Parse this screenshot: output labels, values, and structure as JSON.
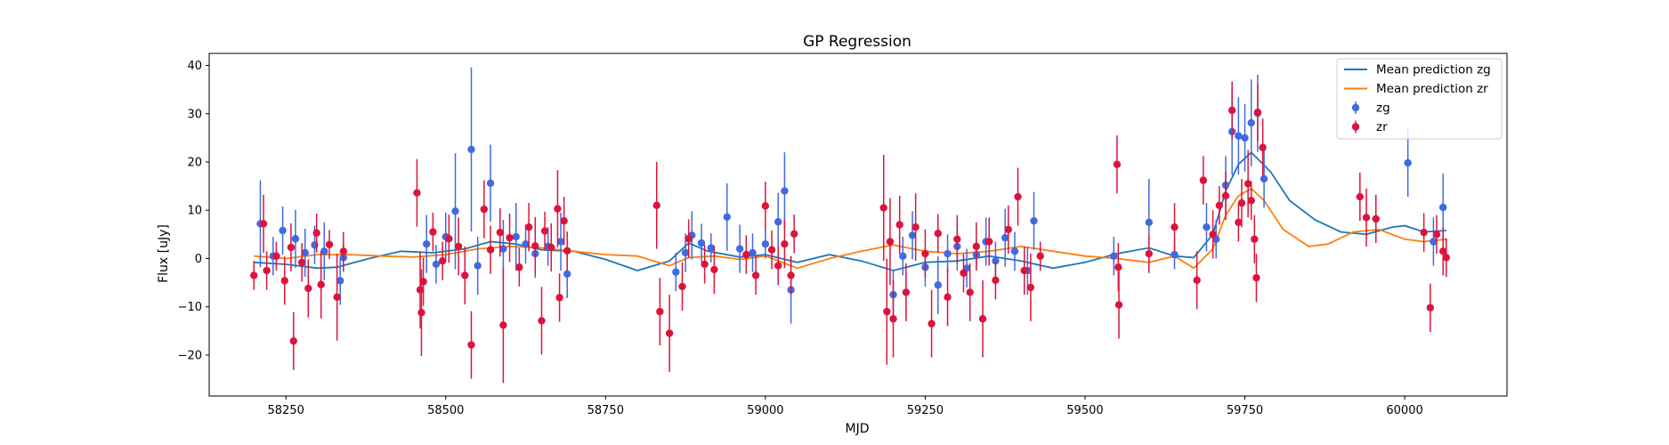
{
  "chart_data": {
    "type": "scatter",
    "title": "GP Regression",
    "xlabel": "MJD",
    "ylabel": "Flux [uJy]",
    "xlim": [
      58130,
      60160
    ],
    "ylim": [
      -28.5,
      42.5
    ],
    "xticks": [
      58250,
      58500,
      58750,
      59000,
      59250,
      59500,
      59750,
      60000
    ],
    "yticks": [
      -20,
      -10,
      0,
      10,
      20,
      30,
      40
    ],
    "grid": false,
    "legend_position": "top-right",
    "series": [
      {
        "name": "zg",
        "kind": "errorbar",
        "color": "#4169e1",
        "points": [
          [
            58210,
            7.2,
            9
          ],
          [
            58230,
            0.5,
            4
          ],
          [
            58245,
            5.8,
            5
          ],
          [
            58265,
            4.1,
            6
          ],
          [
            58280,
            1.2,
            5
          ],
          [
            58295,
            2.8,
            4
          ],
          [
            58310,
            1.5,
            6
          ],
          [
            58335,
            -4.6,
            5
          ],
          [
            58340,
            0.2,
            3
          ],
          [
            58470,
            3.0,
            6
          ],
          [
            58485,
            -1.2,
            4
          ],
          [
            58500,
            4.5,
            5
          ],
          [
            58515,
            9.8,
            12
          ],
          [
            58540,
            22.6,
            17
          ],
          [
            58550,
            -1.5,
            6
          ],
          [
            58570,
            15.6,
            8
          ],
          [
            58590,
            2.0,
            6
          ],
          [
            58610,
            4.5,
            7
          ],
          [
            58625,
            3.0,
            4
          ],
          [
            58640,
            1.0,
            5
          ],
          [
            58660,
            2.5,
            4
          ],
          [
            58680,
            3.5,
            6
          ],
          [
            58690,
            -3.2,
            5
          ],
          [
            58860,
            -2.8,
            4
          ],
          [
            58875,
            1.2,
            4
          ],
          [
            58885,
            4.8,
            5
          ],
          [
            58900,
            3.2,
            4
          ],
          [
            58915,
            2.2,
            3
          ],
          [
            58940,
            8.6,
            7
          ],
          [
            58960,
            2.0,
            5
          ],
          [
            58980,
            1.2,
            4
          ],
          [
            59000,
            3.0,
            3
          ],
          [
            59020,
            7.6,
            6
          ],
          [
            59030,
            14.0,
            8
          ],
          [
            59040,
            -6.5,
            7
          ],
          [
            59200,
            -7.5,
            5
          ],
          [
            59215,
            0.5,
            4
          ],
          [
            59230,
            4.8,
            5
          ],
          [
            59250,
            -1.8,
            4
          ],
          [
            59270,
            -5.5,
            6
          ],
          [
            59285,
            1.0,
            4
          ],
          [
            59300,
            2.5,
            5
          ],
          [
            59315,
            -2.0,
            4
          ],
          [
            59330,
            0.8,
            3
          ],
          [
            59345,
            3.5,
            5
          ],
          [
            59360,
            -0.5,
            4
          ],
          [
            59375,
            4.3,
            6
          ],
          [
            59390,
            1.5,
            4
          ],
          [
            59410,
            -2.5,
            5
          ],
          [
            59420,
            7.8,
            6
          ],
          [
            59545,
            0.5,
            4
          ],
          [
            59600,
            7.5,
            9
          ],
          [
            59640,
            0.8,
            3
          ],
          [
            59690,
            6.5,
            5
          ],
          [
            59705,
            4.0,
            4
          ],
          [
            59720,
            15.2,
            6
          ],
          [
            59730,
            26.3,
            9
          ],
          [
            59740,
            25.4,
            8
          ],
          [
            59750,
            25.0,
            7
          ],
          [
            59760,
            28.1,
            9
          ],
          [
            59770,
            30.1,
            8
          ],
          [
            59780,
            16.5,
            6
          ],
          [
            60005,
            19.8,
            7
          ],
          [
            60045,
            3.5,
            5
          ],
          [
            60060,
            10.6,
            7
          ]
        ]
      },
      {
        "name": "zr",
        "kind": "errorbar",
        "color": "#dc143c",
        "points": [
          [
            58200,
            -3.5,
            3
          ],
          [
            58215,
            7.2,
            6
          ],
          [
            58220,
            -2.5,
            4
          ],
          [
            58235,
            0.5,
            3
          ],
          [
            58248,
            -4.6,
            5
          ],
          [
            58258,
            2.3,
            5
          ],
          [
            58262,
            -17.1,
            6
          ],
          [
            58275,
            -0.8,
            4
          ],
          [
            58285,
            -6.2,
            6
          ],
          [
            58298,
            5.3,
            4
          ],
          [
            58305,
            -5.4,
            7
          ],
          [
            58318,
            2.9,
            3
          ],
          [
            58330,
            -8.0,
            9
          ],
          [
            58340,
            1.5,
            4
          ],
          [
            58455,
            13.6,
            7
          ],
          [
            58460,
            -6.5,
            8
          ],
          [
            58462,
            -11.2,
            9
          ],
          [
            58465,
            -4.8,
            5
          ],
          [
            58480,
            5.5,
            4
          ],
          [
            58495,
            -0.5,
            4
          ],
          [
            58505,
            4.1,
            5
          ],
          [
            58520,
            2.5,
            6
          ],
          [
            58530,
            -3.5,
            6
          ],
          [
            58540,
            -17.9,
            7
          ],
          [
            58560,
            10.2,
            6
          ],
          [
            58570,
            1.8,
            5
          ],
          [
            58585,
            5.4,
            5
          ],
          [
            58590,
            -13.8,
            12
          ],
          [
            58600,
            4.3,
            5
          ],
          [
            58615,
            -1.8,
            4
          ],
          [
            58630,
            6.5,
            5
          ],
          [
            58640,
            2.6,
            6
          ],
          [
            58650,
            -12.9,
            7
          ],
          [
            58655,
            5.7,
            4
          ],
          [
            58665,
            2.3,
            5
          ],
          [
            58675,
            10.3,
            8
          ],
          [
            58678,
            -8.1,
            5
          ],
          [
            58685,
            7.8,
            5
          ],
          [
            58690,
            1.6,
            4
          ],
          [
            58830,
            11.0,
            9
          ],
          [
            58835,
            -11.0,
            7
          ],
          [
            58850,
            -15.5,
            8
          ],
          [
            58870,
            -5.8,
            5
          ],
          [
            58880,
            4.1,
            4
          ],
          [
            58905,
            -1.2,
            4
          ],
          [
            58920,
            -2.3,
            5
          ],
          [
            58970,
            0.8,
            4
          ],
          [
            58985,
            -3.5,
            4
          ],
          [
            59000,
            10.9,
            5
          ],
          [
            59010,
            1.8,
            4
          ],
          [
            59020,
            -1.5,
            4
          ],
          [
            59030,
            3.0,
            5
          ],
          [
            59040,
            -3.5,
            4
          ],
          [
            59045,
            5.1,
            4
          ],
          [
            59185,
            10.5,
            11
          ],
          [
            59190,
            -11.0,
            11
          ],
          [
            59195,
            3.5,
            9
          ],
          [
            59200,
            -12.5,
            8
          ],
          [
            59210,
            7.0,
            6
          ],
          [
            59220,
            -7.0,
            6
          ],
          [
            59235,
            6.5,
            7
          ],
          [
            59250,
            1.0,
            5
          ],
          [
            59260,
            -13.5,
            7
          ],
          [
            59270,
            5.2,
            4
          ],
          [
            59285,
            -8.0,
            6
          ],
          [
            59300,
            4.0,
            5
          ],
          [
            59310,
            -3.0,
            4
          ],
          [
            59320,
            -7.0,
            6
          ],
          [
            59330,
            2.5,
            5
          ],
          [
            59340,
            -12.5,
            8
          ],
          [
            59350,
            3.5,
            5
          ],
          [
            59360,
            -4.5,
            4
          ],
          [
            59380,
            6.0,
            5
          ],
          [
            59395,
            12.8,
            6
          ],
          [
            59405,
            -2.5,
            5
          ],
          [
            59415,
            -6.0,
            7
          ],
          [
            59430,
            0.5,
            3
          ],
          [
            59550,
            19.5,
            6
          ],
          [
            59552,
            -1.8,
            5
          ],
          [
            59553,
            -9.6,
            7
          ],
          [
            59600,
            1.0,
            4
          ],
          [
            59640,
            6.5,
            5
          ],
          [
            59675,
            -4.5,
            6
          ],
          [
            59685,
            16.2,
            5
          ],
          [
            59700,
            5.0,
            5
          ],
          [
            59710,
            11.0,
            4
          ],
          [
            59720,
            13.0,
            5
          ],
          [
            59730,
            30.7,
            6
          ],
          [
            59740,
            7.5,
            4
          ],
          [
            59745,
            11.5,
            5
          ],
          [
            59755,
            15.5,
            7
          ],
          [
            59760,
            12.0,
            4
          ],
          [
            59765,
            4.0,
            5
          ],
          [
            59768,
            -4.0,
            5
          ],
          [
            59770,
            30.3,
            6
          ],
          [
            59778,
            23.0,
            6
          ],
          [
            59930,
            12.8,
            5
          ],
          [
            59940,
            8.5,
            6
          ],
          [
            59955,
            8.2,
            5
          ],
          [
            60030,
            5.4,
            4
          ],
          [
            60040,
            -10.2,
            5
          ],
          [
            60050,
            5.0,
            4
          ],
          [
            60060,
            1.5,
            5
          ],
          [
            60065,
            0.2,
            4
          ]
        ]
      },
      {
        "name": "Mean prediction zg",
        "kind": "line",
        "color": "#1f77b4",
        "x": [
          58200,
          58250,
          58300,
          58330,
          58380,
          58430,
          58480,
          58530,
          58570,
          58610,
          58650,
          58700,
          58750,
          58800,
          58850,
          58880,
          58910,
          58960,
          59000,
          59050,
          59100,
          59150,
          59200,
          59250,
          59300,
          59350,
          59400,
          59450,
          59500,
          59550,
          59600,
          59640,
          59670,
          59700,
          59720,
          59740,
          59760,
          59790,
          59820,
          59860,
          59900,
          59940,
          59980,
          60000,
          60030,
          60065
        ],
        "y": [
          -0.8,
          -1.2,
          -2.0,
          -1.8,
          0.0,
          1.5,
          1.2,
          2.0,
          3.5,
          3.0,
          1.8,
          1.5,
          -0.2,
          -2.5,
          -0.5,
          3.2,
          1.5,
          0.3,
          0.8,
          -0.8,
          0.8,
          -0.5,
          -2.5,
          -0.8,
          -0.5,
          0.5,
          -0.5,
          -2.0,
          -0.8,
          1.0,
          2.2,
          0.5,
          0.2,
          5.0,
          14.0,
          19.5,
          22.0,
          18.0,
          12.0,
          8.0,
          5.5,
          5.0,
          6.5,
          6.8,
          5.5,
          5.8
        ]
      },
      {
        "name": "Mean prediction zr",
        "kind": "line",
        "color": "#ff7f0e",
        "x": [
          58200,
          58250,
          58300,
          58350,
          58400,
          58450,
          58500,
          58550,
          58600,
          58650,
          58700,
          58750,
          58800,
          58850,
          58880,
          58920,
          58960,
          59000,
          59050,
          59100,
          59150,
          59200,
          59250,
          59300,
          59350,
          59400,
          59450,
          59500,
          59550,
          59600,
          59640,
          59670,
          59700,
          59720,
          59740,
          59760,
          59780,
          59810,
          59850,
          59880,
          59920,
          59960,
          60000,
          60030,
          60065
        ],
        "y": [
          0.5,
          0.0,
          0.8,
          0.8,
          0.5,
          0.3,
          0.8,
          2.0,
          2.5,
          2.2,
          1.5,
          0.8,
          0.5,
          -1.5,
          0.2,
          0.5,
          -0.2,
          0.5,
          -2.0,
          0.0,
          1.5,
          2.8,
          1.5,
          1.0,
          1.5,
          2.5,
          1.5,
          0.5,
          0.0,
          -0.8,
          0.5,
          -2.0,
          2.0,
          9.0,
          13.0,
          14.5,
          12.0,
          6.0,
          2.5,
          3.0,
          5.5,
          6.0,
          4.0,
          3.5,
          4.0
        ]
      }
    ],
    "legend": [
      {
        "label": "Mean prediction zg",
        "kind": "line",
        "color": "#1f77b4"
      },
      {
        "label": "Mean prediction zr",
        "kind": "line",
        "color": "#ff7f0e"
      },
      {
        "label": "zg",
        "kind": "errorbar",
        "color": "#4169e1"
      },
      {
        "label": "zr",
        "kind": "errorbar",
        "color": "#dc143c"
      }
    ]
  }
}
